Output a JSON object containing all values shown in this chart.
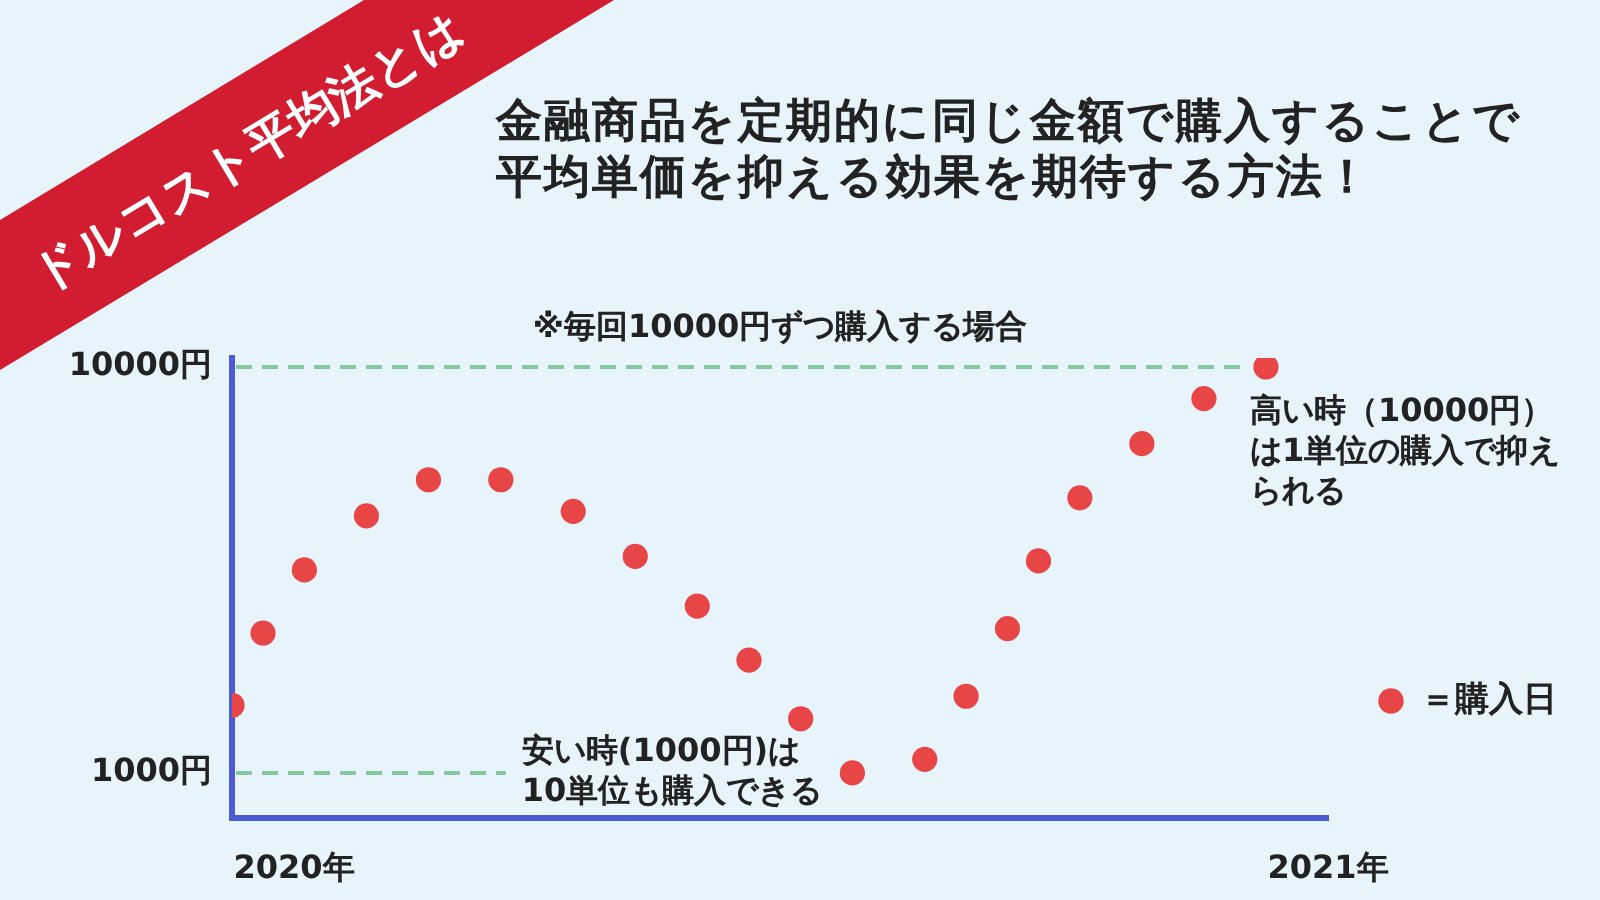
{
  "chart_data": {
    "type": "scatter",
    "title": "ドルコスト平均法とは",
    "subtitle": "金融商品を定期的に同じ金額で購入することで平均単価を抑える効果を期待する方法！",
    "x": [
      2019.94,
      2019.97,
      2020.01,
      2020.07,
      2020.13,
      2020.2,
      2020.27,
      2020.33,
      2020.39,
      2020.44,
      2020.49,
      2020.54,
      2020.61,
      2020.65,
      2020.69,
      2020.72,
      2020.76,
      2020.82,
      2020.88,
      2020.94
    ],
    "series": [
      {
        "name": "＝購入日",
        "color": "#e84646",
        "values": [
          2500,
          4100,
          5500,
          6700,
          7500,
          7500,
          6800,
          5800,
          4700,
          3500,
          2200,
          1000,
          1300,
          2700,
          4200,
          5700,
          7100,
          8300,
          9300,
          10000
        ]
      }
    ],
    "xlim": [
      2019.94,
      2021
    ],
    "xticks": [
      {
        "value": 2020,
        "label": "2020年"
      },
      {
        "value": 2021,
        "label": "2021年"
      }
    ],
    "ylim": [
      0,
      10200
    ],
    "yticks": [
      {
        "value": 1000,
        "label": "1000円"
      },
      {
        "value": 10000,
        "label": "10000円"
      }
    ],
    "ref_lines": [
      {
        "axis": "y",
        "value": 10000,
        "label": "※毎回10000円ずつ購入する場合",
        "color": "#86c9a0",
        "line_style": "dashed"
      },
      {
        "axis": "y",
        "value": 1000,
        "color": "#86c9a0",
        "line_style": "dashed"
      }
    ],
    "annotations": [
      {
        "text": "高い時（10000円）は1単位の購入で抑えられる",
        "x": 2020.94,
        "y": 10000
      },
      {
        "text": "安い時(1000円)は10単位も購入できる",
        "x": 2020.54,
        "y": 1000
      }
    ],
    "legend": "right",
    "marker": "circle"
  }
}
